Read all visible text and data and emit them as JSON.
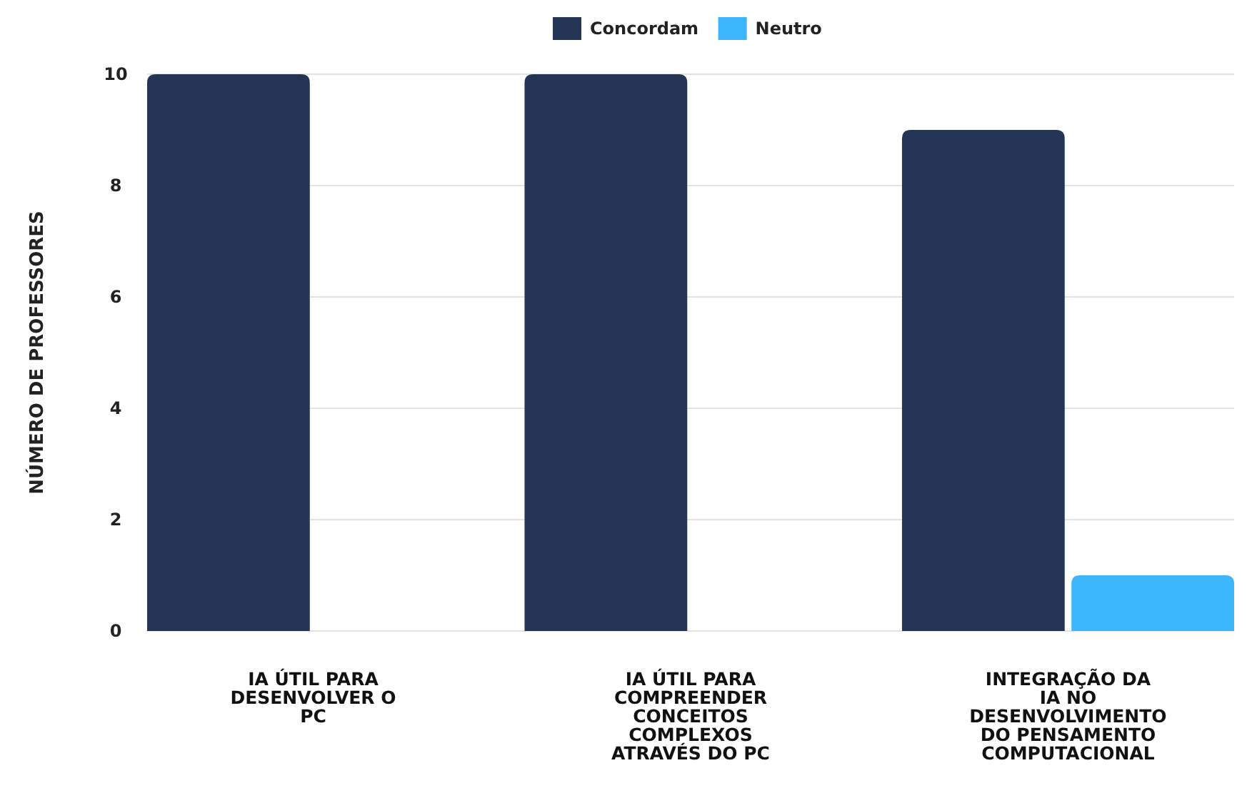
{
  "chart_data": {
    "type": "bar",
    "ylabel": "NÚMERO  DE PROFESSORES",
    "categories": [
      "IA ÚTIL PARA DESENVOLVER O PC",
      "IA ÚTIL PARA COMPREENDER CONCEITOS COMPLEXOS ATRAVÉS DO PC",
      "INTEGRAÇÃO DA IA NO DESENVOLVIMENTO DO PENSAMENTO COMPUTACIONAL"
    ],
    "series": [
      {
        "name": "Concordam",
        "color": "#233554",
        "values": [
          10,
          10,
          9
        ]
      },
      {
        "name": "Neutro",
        "color": "#3db5fb",
        "values": [
          0,
          0,
          1
        ]
      }
    ],
    "ylim": [
      0,
      10
    ],
    "yticks": [
      0,
      2,
      4,
      6,
      8,
      10
    ],
    "grid": "y",
    "legend": "top"
  }
}
